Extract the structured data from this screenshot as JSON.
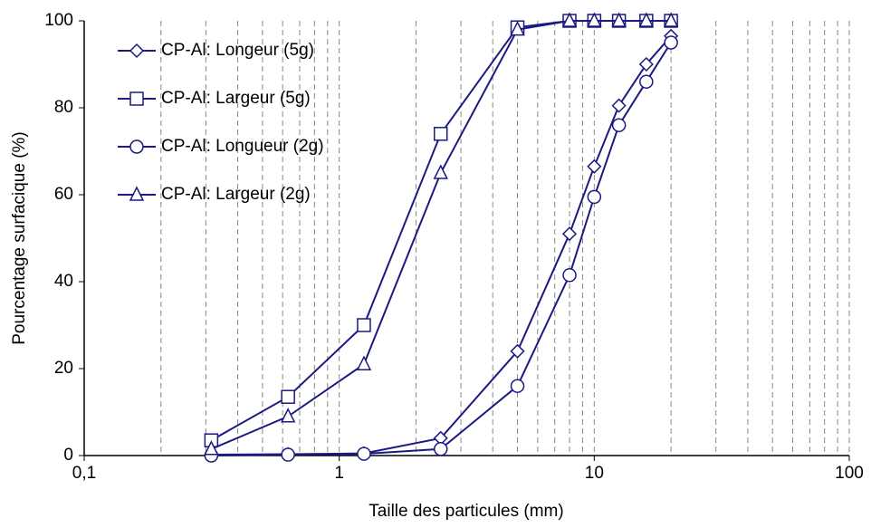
{
  "chart_data": {
    "type": "line",
    "xlabel": "Taille des particules (mm)",
    "ylabel": "Pourcentage surfacique (%)",
    "x": [
      0.315,
      0.63,
      1.25,
      2.5,
      5,
      8,
      10,
      12.5,
      16,
      20
    ],
    "series": [
      {
        "name": "CP-Al: Longeur (5g)",
        "color": "#1a1a80",
        "marker": "diamond",
        "values": [
          0.2,
          0.3,
          0.5,
          4,
          24,
          51,
          66.5,
          80.5,
          90,
          96.5
        ]
      },
      {
        "name": "CP-Al: Largeur (5g)",
        "color": "#1a1a80",
        "marker": "square",
        "values": [
          3.5,
          13.5,
          30,
          74,
          98.5,
          100,
          100,
          100,
          100,
          100
        ]
      },
      {
        "name": "CP-Al: Longueur (2g)",
        "color": "#1a1a80",
        "marker": "circle",
        "values": [
          0,
          0.2,
          0.4,
          1.5,
          16,
          41.5,
          59.5,
          76,
          86,
          95
        ]
      },
      {
        "name": "CP-Al: Largeur (2g)",
        "color": "#1a1a80",
        "marker": "triangle",
        "values": [
          1.5,
          9,
          21,
          65,
          98,
          100,
          100,
          100,
          100,
          100
        ]
      }
    ],
    "xscale": "log",
    "xlim": [
      0.1,
      100
    ],
    "xticks": [
      {
        "value": 0.1,
        "label": "0,1"
      },
      1,
      10,
      100
    ],
    "xminorticks": [
      0.2,
      0.3,
      0.4,
      0.5,
      0.6,
      0.7,
      0.8,
      0.9,
      2,
      3,
      4,
      5,
      6,
      7,
      8,
      9,
      20,
      30,
      40,
      50,
      60,
      70,
      80,
      90
    ],
    "ylim": [
      0,
      100
    ],
    "yticks": [
      0,
      20,
      40,
      60,
      80,
      100
    ],
    "grid": "x",
    "legend": "upper left"
  }
}
